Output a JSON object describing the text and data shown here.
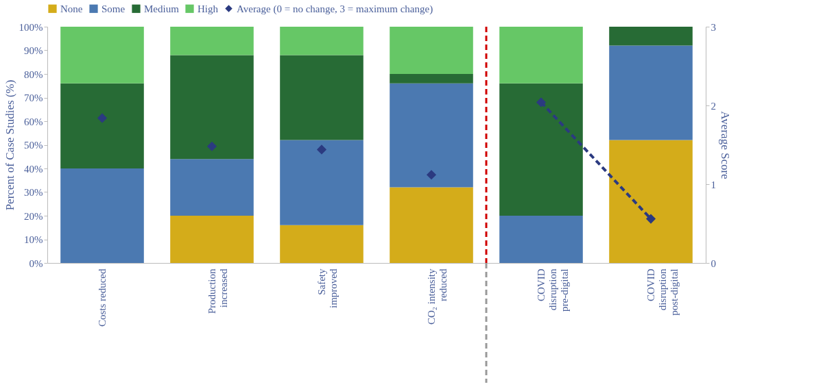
{
  "chart_data": {
    "type": "bar",
    "stacked": true,
    "ylabel": "Percent of Case Studies (%)",
    "y2label": "Average Score",
    "categories": [
      "Costs reduced",
      "Production increased",
      "Safety improved",
      "CO₂ intensity reduced",
      "COVID disruption pre-digital",
      "COVID disruption post-digital"
    ],
    "series": [
      {
        "name": "None",
        "color": "#d4ac1a",
        "values": [
          0,
          20,
          16,
          32,
          0,
          52
        ]
      },
      {
        "name": "Some",
        "color": "#4b79b1",
        "values": [
          40,
          24,
          36,
          44,
          20,
          40
        ]
      },
      {
        "name": "Medium",
        "color": "#276b35",
        "values": [
          36,
          44,
          36,
          4,
          56,
          8
        ]
      },
      {
        "name": "High",
        "color": "#66c766",
        "values": [
          24,
          12,
          12,
          20,
          24,
          0
        ]
      },
      {
        "name": "Average (0 = no change, 3 = maximum change)",
        "type": "scatter",
        "axis": "y2",
        "marker": "diamond",
        "color": "#2b3a80",
        "values": [
          1.84,
          1.48,
          1.44,
          1.12,
          2.04,
          0.56
        ]
      },
      {
        "type": "line",
        "axis": "y2",
        "marker": "none",
        "line_style": "dashed",
        "color": "#2b3a80",
        "values": [
          null,
          null,
          null,
          null,
          2.04,
          0.56
        ]
      }
    ],
    "ylim": [
      0,
      100
    ],
    "yticks": [
      {
        "value": 0,
        "label": "0%"
      },
      {
        "value": 10,
        "label": "10%"
      },
      {
        "value": 20,
        "label": "20%"
      },
      {
        "value": 30,
        "label": "30%"
      },
      {
        "value": 40,
        "label": "40%"
      },
      {
        "value": 50,
        "label": "50%"
      },
      {
        "value": 60,
        "label": "60%"
      },
      {
        "value": 70,
        "label": "70%"
      },
      {
        "value": 80,
        "label": "80%"
      },
      {
        "value": 90,
        "label": "90%"
      },
      {
        "value": 100,
        "label": "100%"
      }
    ],
    "y2lim": [
      0,
      3
    ],
    "y2ticks": [
      0,
      1,
      2,
      3
    ],
    "legend": "top"
  }
}
